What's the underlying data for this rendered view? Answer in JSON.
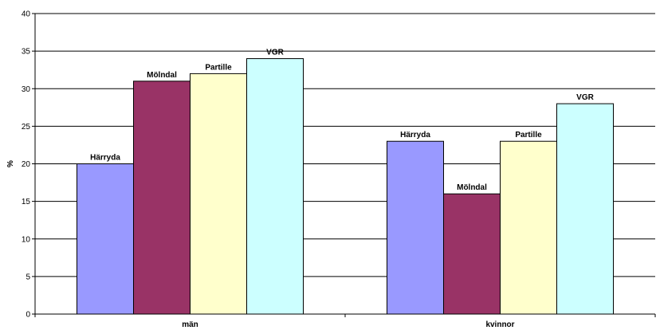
{
  "chart_data": {
    "type": "bar",
    "title": "",
    "xlabel": "",
    "ylabel": "%",
    "ylim": [
      0,
      40
    ],
    "yticks": [
      "0",
      "5",
      "10",
      "15",
      "20",
      "25",
      "30",
      "35",
      "40"
    ],
    "grid": true,
    "legend": "none",
    "categories": [
      "män",
      "kvinnor"
    ],
    "series": [
      {
        "name": "Härryda",
        "color": "#9999ff",
        "values": [
          20,
          23
        ]
      },
      {
        "name": "Mölndal",
        "color": "#993366",
        "values": [
          31,
          16
        ]
      },
      {
        "name": "Partille",
        "color": "#ffffcc",
        "values": [
          32,
          23
        ]
      },
      {
        "name": "VGR",
        "color": "#ccffff",
        "values": [
          34,
          28
        ]
      }
    ]
  }
}
